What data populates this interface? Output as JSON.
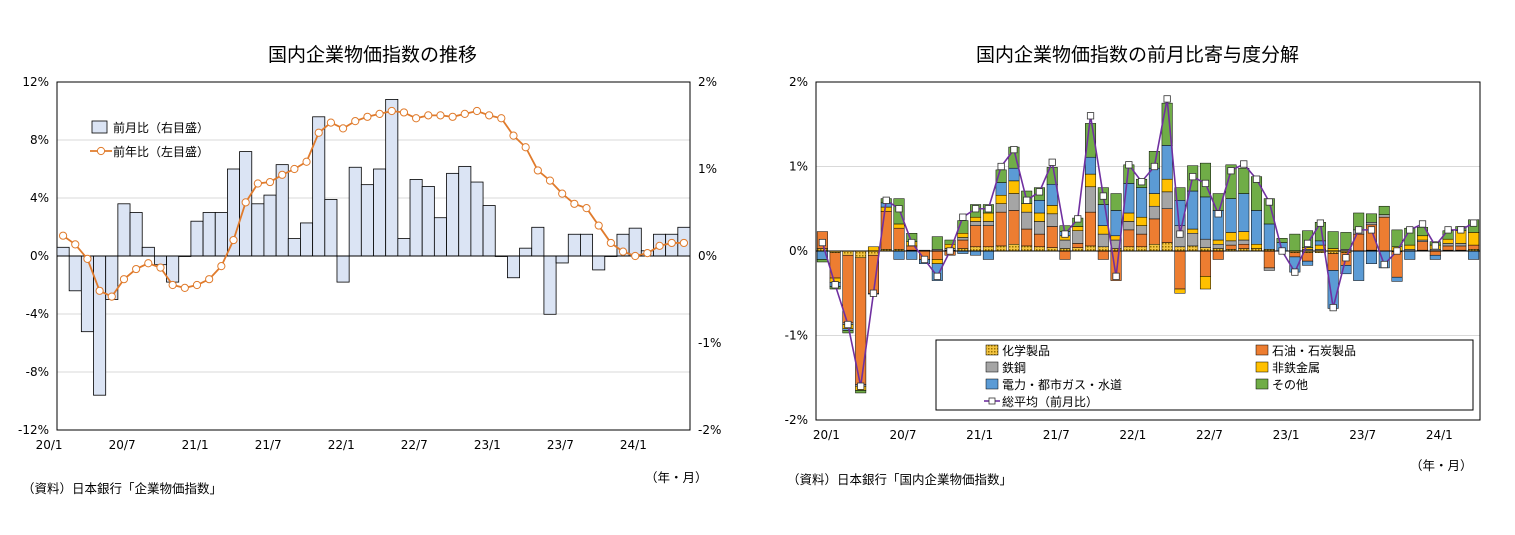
{
  "chart_data": [
    {
      "type": "bar",
      "title": "国内企業物価指数の推移",
      "source": "（資料）日本銀行「企業物価指数」",
      "unit_label": "（年・月）",
      "x_tick_labels": [
        "20/1",
        "20/7",
        "21/1",
        "21/7",
        "22/1",
        "22/7",
        "23/1",
        "23/7",
        "24/1"
      ],
      "y_left_ticks": [
        "12%",
        "8%",
        "4%",
        "0%",
        "-4%",
        "-8%",
        "-12%"
      ],
      "y_right_ticks": [
        "2%",
        "1%",
        "0%",
        "-1%",
        "-2%"
      ],
      "ylim_left": [
        -12,
        12
      ],
      "ylim_right": [
        -2,
        2
      ],
      "grid": true,
      "legend_position": "top-left",
      "legend": [
        "前月比（右目盛）",
        "前年比（左目盛）"
      ],
      "colors": {
        "bar_fill": "#dbe4f4",
        "bar_stroke": "#000000",
        "line": "#e07b2c",
        "grid": "#d9d9d9"
      },
      "x_months": [
        "20/1",
        "20/2",
        "20/3",
        "20/4",
        "20/5",
        "20/6",
        "20/7",
        "20/8",
        "20/9",
        "20/10",
        "20/11",
        "20/12",
        "21/1",
        "21/2",
        "21/3",
        "21/4",
        "21/5",
        "21/6",
        "21/7",
        "21/8",
        "21/9",
        "21/10",
        "21/11",
        "21/12",
        "22/1",
        "22/2",
        "22/3",
        "22/4",
        "22/5",
        "22/6",
        "22/7",
        "22/8",
        "22/9",
        "22/10",
        "22/11",
        "22/12",
        "23/1",
        "23/2",
        "23/3",
        "23/4",
        "23/5",
        "23/6",
        "23/7",
        "23/8",
        "23/9",
        "23/10",
        "23/11",
        "23/12",
        "24/1",
        "24/2",
        "24/3",
        "24/4"
      ],
      "series": [
        {
          "name": "前月比（右目盛）",
          "kind": "bar",
          "axis": "right",
          "values": [
            0.1,
            -0.4,
            -0.87,
            -1.6,
            -0.5,
            0.6,
            0.5,
            0.1,
            -0.1,
            -0.3,
            0.0,
            0.4,
            0.5,
            0.5,
            1.0,
            1.2,
            0.6,
            0.7,
            1.05,
            0.2,
            0.38,
            1.6,
            0.65,
            -0.3,
            1.02,
            0.82,
            1.0,
            1.8,
            0.2,
            0.88,
            0.8,
            0.44,
            0.95,
            1.03,
            0.85,
            0.58,
            0.0,
            -0.25,
            0.09,
            0.33,
            -0.67,
            -0.08,
            0.25,
            0.25,
            -0.16,
            0.0,
            0.25,
            0.32,
            0.06,
            0.25,
            0.25,
            0.33
          ]
        },
        {
          "name": "前年比（左目盛）",
          "kind": "line",
          "axis": "left",
          "values": [
            1.4,
            0.8,
            -0.2,
            -2.4,
            -2.8,
            -1.6,
            -0.9,
            -0.5,
            -0.8,
            -2.0,
            -2.2,
            -2.0,
            -1.6,
            -0.7,
            1.1,
            3.7,
            5.0,
            5.1,
            5.6,
            6.0,
            6.5,
            8.5,
            9.2,
            8.8,
            9.3,
            9.6,
            9.8,
            10.0,
            9.9,
            9.5,
            9.7,
            9.7,
            9.6,
            9.8,
            10.0,
            9.7,
            9.5,
            8.3,
            7.5,
            5.9,
            5.2,
            4.3,
            3.6,
            3.3,
            2.1,
            0.9,
            0.3,
            0.0,
            0.2,
            0.7,
            0.9,
            0.9
          ]
        }
      ]
    },
    {
      "type": "bar",
      "stacked": true,
      "title": "国内企業物価指数の前月比寄与度分解",
      "source": "（資料）日本銀行「国内企業物価指数」",
      "unit_label": "（年・月）",
      "x_tick_labels": [
        "20/1",
        "20/7",
        "21/1",
        "21/7",
        "22/1",
        "22/7",
        "23/1",
        "23/7",
        "24/1"
      ],
      "y_ticks": [
        "2%",
        "1%",
        "0%",
        "-1%",
        "-2%"
      ],
      "ylim": [
        -2,
        2
      ],
      "grid": true,
      "legend_position": "bottom-right",
      "legend": [
        "化学製品",
        "石油・石炭製品",
        "鉄鋼",
        "非鉄金属",
        "電力・都市ガス・水道",
        "その他",
        "総平均（前月比）"
      ],
      "colors": {
        "化学製品": "#d4a20a",
        "石油・石炭製品": "#ed7d31",
        "鉄鋼": "#a5a5a5",
        "非鉄金属": "#ffc000",
        "電力・都市ガス・水道": "#5b9bd5",
        "その他": "#70ad47",
        "総平均（前月比）": "#7030a0"
      },
      "x_months": [
        "20/1",
        "20/2",
        "20/3",
        "20/4",
        "20/5",
        "20/6",
        "20/7",
        "20/8",
        "20/9",
        "20/10",
        "20/11",
        "20/12",
        "21/1",
        "21/2",
        "21/3",
        "21/4",
        "21/5",
        "21/6",
        "21/7",
        "21/8",
        "21/9",
        "21/10",
        "21/11",
        "21/12",
        "22/1",
        "22/2",
        "22/3",
        "22/4",
        "22/5",
        "22/6",
        "22/7",
        "22/8",
        "22/9",
        "22/10",
        "22/11",
        "22/12",
        "23/1",
        "23/2",
        "23/3",
        "23/4",
        "23/5",
        "23/6",
        "23/7",
        "23/8",
        "23/9",
        "23/10",
        "23/11",
        "23/12",
        "24/1",
        "24/2",
        "24/3",
        "24/4"
      ],
      "series": [
        {
          "name": "化学製品",
          "values": [
            0.03,
            -0.02,
            -0.05,
            -0.08,
            -0.05,
            0.02,
            0.02,
            0.01,
            0.0,
            0.0,
            0.01,
            0.03,
            0.05,
            0.05,
            0.06,
            0.08,
            0.06,
            0.05,
            0.04,
            0.03,
            0.04,
            0.06,
            0.05,
            0.03,
            0.05,
            0.05,
            0.08,
            0.1,
            0.05,
            0.06,
            0.04,
            0.03,
            0.02,
            0.03,
            0.03,
            0.02,
            0.0,
            -0.02,
            -0.02,
            -0.02,
            -0.03,
            -0.02,
            0.0,
            0.01,
            0.0,
            -0.01,
            0.0,
            0.01,
            0.0,
            0.01,
            0.01,
            0.02
          ]
        },
        {
          "name": "石油・石炭製品",
          "values": [
            0.2,
            -0.3,
            -0.8,
            -1.5,
            -0.45,
            0.45,
            0.25,
            0.05,
            -0.1,
            -0.1,
            -0.05,
            0.1,
            0.25,
            0.25,
            0.4,
            0.4,
            0.2,
            0.15,
            0.25,
            -0.1,
            0.05,
            0.4,
            -0.1,
            -0.35,
            0.2,
            0.15,
            0.3,
            0.4,
            -0.45,
            0.0,
            -0.3,
            -0.1,
            0.05,
            0.05,
            0.0,
            -0.2,
            0.0,
            -0.05,
            -0.1,
            0.0,
            -0.2,
            -0.15,
            0.2,
            0.3,
            0.4,
            -0.3,
            0.0,
            0.1,
            -0.05,
            0.05,
            0.05,
            0.05
          ]
        },
        {
          "name": "鉄鋼",
          "values": [
            0.0,
            0.0,
            -0.02,
            -0.02,
            -0.01,
            0.0,
            0.0,
            0.0,
            0.01,
            0.02,
            0.02,
            0.03,
            0.05,
            0.05,
            0.1,
            0.2,
            0.2,
            0.15,
            0.15,
            0.1,
            0.15,
            0.3,
            0.15,
            0.1,
            0.1,
            0.1,
            0.15,
            0.2,
            0.25,
            0.15,
            0.1,
            0.05,
            0.05,
            0.05,
            0.0,
            -0.03,
            0.0,
            0.0,
            0.02,
            0.02,
            0.0,
            0.02,
            0.05,
            0.03,
            0.03,
            0.0,
            0.02,
            0.02,
            0.02,
            0.03,
            0.03,
            0.0
          ]
        },
        {
          "name": "非鉄金属",
          "values": [
            0.0,
            -0.05,
            -0.05,
            -0.05,
            0.05,
            0.05,
            0.05,
            0.05,
            0.0,
            -0.05,
            0.05,
            0.05,
            0.05,
            0.1,
            0.1,
            0.15,
            0.1,
            0.1,
            0.1,
            0.05,
            0.05,
            0.15,
            0.1,
            0.05,
            0.1,
            0.1,
            0.15,
            0.15,
            -0.05,
            0.05,
            -0.15,
            0.05,
            0.1,
            0.1,
            0.05,
            0.0,
            0.0,
            0.0,
            0.02,
            0.05,
            0.03,
            0.0,
            0.0,
            0.0,
            0.0,
            0.05,
            0.05,
            0.05,
            0.05,
            0.05,
            0.15,
            0.15
          ]
        },
        {
          "name": "電力・都市ガス・水道",
          "values": [
            -0.1,
            -0.05,
            -0.02,
            0.0,
            0.0,
            0.05,
            -0.1,
            -0.1,
            -0.05,
            -0.2,
            0.0,
            -0.03,
            -0.05,
            -0.1,
            0.15,
            0.15,
            0.0,
            0.15,
            0.25,
            0.05,
            0.0,
            0.2,
            0.25,
            0.3,
            0.35,
            0.35,
            0.3,
            0.4,
            0.3,
            0.45,
            0.5,
            0.35,
            0.4,
            0.45,
            0.4,
            0.3,
            0.1,
            -0.18,
            -0.05,
            0.05,
            -0.45,
            -0.1,
            -0.35,
            -0.15,
            -0.2,
            -0.05,
            -0.1,
            0.0,
            -0.05,
            0.0,
            0.0,
            -0.1
          ]
        },
        {
          "name": "その他",
          "values": [
            -0.03,
            -0.03,
            -0.03,
            -0.03,
            0.0,
            0.05,
            0.3,
            0.1,
            0.0,
            0.15,
            0.05,
            0.15,
            0.15,
            0.1,
            0.15,
            0.25,
            0.15,
            0.15,
            0.2,
            0.07,
            0.1,
            0.4,
            0.2,
            0.2,
            0.22,
            0.1,
            0.2,
            0.5,
            0.15,
            0.3,
            0.4,
            0.2,
            0.4,
            0.3,
            0.4,
            0.3,
            0.05,
            0.2,
            0.2,
            0.22,
            0.2,
            0.2,
            0.2,
            0.1,
            0.1,
            0.2,
            0.2,
            0.1,
            0.04,
            0.1,
            0.05,
            0.15
          ]
        },
        {
          "name": "総平均（前月比）",
          "kind": "line",
          "values": [
            0.1,
            -0.4,
            -0.87,
            -1.6,
            -0.5,
            0.6,
            0.5,
            0.1,
            -0.1,
            -0.3,
            0.0,
            0.4,
            0.5,
            0.5,
            1.0,
            1.2,
            0.6,
            0.7,
            1.05,
            0.2,
            0.38,
            1.6,
            0.65,
            -0.3,
            1.02,
            0.82,
            1.0,
            1.8,
            0.2,
            0.88,
            0.8,
            0.44,
            0.95,
            1.03,
            0.85,
            0.58,
            0.0,
            -0.25,
            0.09,
            0.33,
            -0.67,
            -0.08,
            0.25,
            0.25,
            -0.16,
            0.0,
            0.25,
            0.32,
            0.06,
            0.25,
            0.25,
            0.33
          ]
        }
      ]
    }
  ]
}
